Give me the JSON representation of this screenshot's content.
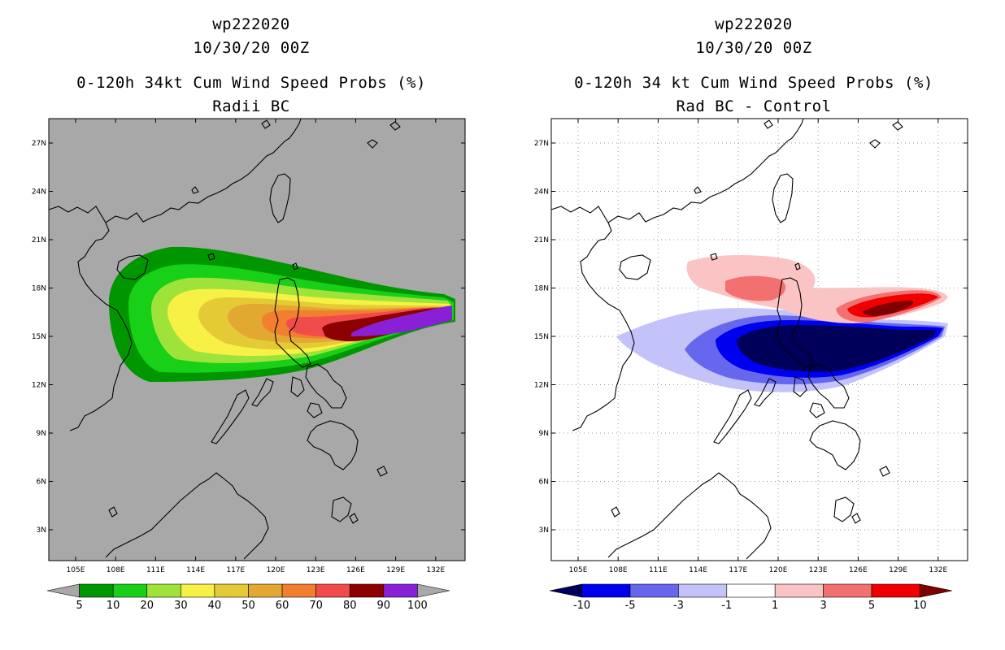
{
  "left_panel": {
    "title_lines": [
      "wp222020",
      "10/30/20 00Z"
    ],
    "subtitle_lines": [
      "0-120h 34kt Cum Wind Speed Probs (%)",
      "Radii BC"
    ],
    "background_color": "#a8a8a8",
    "lon_labels": [
      "105E",
      "108E",
      "111E",
      "114E",
      "117E",
      "120E",
      "123E",
      "126E",
      "129E",
      "132E"
    ],
    "lat_labels": [
      "27N",
      "24N",
      "21N",
      "18N",
      "15N",
      "12N",
      "9N",
      "6N",
      "3N"
    ],
    "colorbar": {
      "labels": [
        "5",
        "10",
        "20",
        "30",
        "40",
        "50",
        "60",
        "70",
        "80",
        "90",
        "100"
      ],
      "colors": [
        "#a8a8a8",
        "#009600",
        "#17d017",
        "#9fe33a",
        "#f7f145",
        "#e4cb36",
        "#e2a831",
        "#f17f2f",
        "#f24b4b",
        "#8c0000",
        "#8a1fd8",
        "#a8a8a8"
      ]
    }
  },
  "right_panel": {
    "title_lines": [
      "wp222020",
      "10/30/20 00Z"
    ],
    "subtitle_lines": [
      "0-120h 34 kt Cum Wind Speed Probs (%)",
      "Rad BC - Control"
    ],
    "lon_labels": [
      "105E",
      "108E",
      "111E",
      "114E",
      "117E",
      "120E",
      "123E",
      "126E",
      "129E",
      "132E"
    ],
    "lat_labels": [
      "27N",
      "24N",
      "21N",
      "18N",
      "15N",
      "12N",
      "9N",
      "6N",
      "3N"
    ],
    "colorbar": {
      "labels": [
        "-10",
        "-5",
        "-3",
        "-1",
        "1",
        "3",
        "5",
        "10"
      ],
      "colors": [
        "#00005a",
        "#0000f0",
        "#6767ee",
        "#c3c3f9",
        "#ffffff",
        "#fbc4c4",
        "#f27070",
        "#f00000",
        "#7f0000"
      ]
    }
  }
}
